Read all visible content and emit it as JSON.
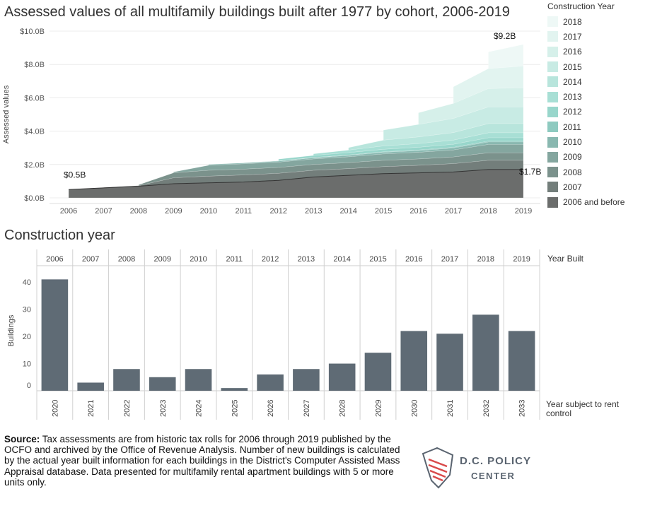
{
  "titles": {
    "top_chart": "Assessed values of all multifamily buildings built after 1977 by cohort, 2006-2019",
    "bottom_chart": "Construction year"
  },
  "legend": {
    "title": "Construction Year",
    "items": [
      {
        "label": "2018",
        "color": "#eef8f6"
      },
      {
        "label": "2017",
        "color": "#e2f4f0"
      },
      {
        "label": "2016",
        "color": "#d6f0ea"
      },
      {
        "label": "2015",
        "color": "#c8ebe4"
      },
      {
        "label": "2014",
        "color": "#b8e5dc"
      },
      {
        "label": "2013",
        "color": "#a8dfd5"
      },
      {
        "label": "2012",
        "color": "#98d6cb"
      },
      {
        "label": "2011",
        "color": "#8ecac0"
      },
      {
        "label": "2010",
        "color": "#89b8b0"
      },
      {
        "label": "2009",
        "color": "#84a69f"
      },
      {
        "label": "2008",
        "color": "#7b928c"
      },
      {
        "label": "2007",
        "color": "#737e7b"
      },
      {
        "label": "2006 and before",
        "color": "#6b6d6c"
      }
    ]
  },
  "annotations": {
    "start_value": "$0.5B",
    "end_total": "$9.2B",
    "end_base": "$1.7B"
  },
  "right_labels": {
    "year_built": "Year Built",
    "year_rent_control": "Year subject to rent control"
  },
  "source": {
    "bold": "Source:",
    "text": " Tax assessments are from historic tax rolls for 2006 through 2019 published by the OCFO and archived by the Office of Revenue Analysis. Number of new buildings is calculated by the actual year built information for each buildings in the District's Computer Assisted Mass Appraisal database. Data presented for multifamily rental apartment buildings with 5 or more units only."
  },
  "logo": {
    "line1": "D.C. POLICY",
    "line2": "CENTER"
  },
  "chart_data": [
    {
      "type": "area",
      "title": "Assessed values of all multifamily buildings built after 1977 by cohort, 2006-2019",
      "xlabel": "",
      "ylabel": "Assessed values",
      "x": [
        2006,
        2007,
        2008,
        2009,
        2010,
        2011,
        2012,
        2013,
        2014,
        2015,
        2016,
        2017,
        2018,
        2019
      ],
      "y_ticks": [
        "$0.0B",
        "$2.0B",
        "$4.0B",
        "$6.0B",
        "$8.0B",
        "$10.0B"
      ],
      "ylim": [
        0,
        10
      ],
      "stacked": true,
      "series": [
        {
          "name": "2006 and before",
          "start": 2006,
          "values": [
            0.5,
            0.6,
            0.7,
            0.85,
            0.9,
            0.95,
            1.05,
            1.25,
            1.35,
            1.45,
            1.5,
            1.55,
            1.7,
            1.7
          ]
        },
        {
          "name": "2007",
          "start": 2007,
          "values": [
            null,
            0.02,
            0.03,
            0.35,
            0.4,
            0.42,
            0.42,
            0.4,
            0.4,
            0.42,
            0.45,
            0.5,
            0.55,
            0.55
          ]
        },
        {
          "name": "2008",
          "start": 2008,
          "values": [
            null,
            null,
            0.05,
            0.3,
            0.35,
            0.35,
            0.35,
            0.35,
            0.36,
            0.38,
            0.38,
            0.4,
            0.45,
            0.45
          ]
        },
        {
          "name": "2009",
          "start": 2009,
          "values": [
            null,
            null,
            null,
            0.05,
            0.3,
            0.32,
            0.32,
            0.33,
            0.35,
            0.38,
            0.4,
            0.42,
            0.5,
            0.5
          ]
        },
        {
          "name": "2010",
          "start": 2010,
          "values": [
            null,
            null,
            null,
            null,
            0.05,
            0.05,
            0.06,
            0.07,
            0.08,
            0.1,
            0.1,
            0.12,
            0.15,
            0.15
          ]
        },
        {
          "name": "2011",
          "start": 2011,
          "values": [
            null,
            null,
            null,
            null,
            null,
            0.01,
            0.02,
            0.02,
            0.03,
            0.03,
            0.04,
            0.04,
            0.05,
            0.05
          ]
        },
        {
          "name": "2012",
          "start": 2012,
          "values": [
            null,
            null,
            null,
            null,
            null,
            null,
            0.1,
            0.12,
            0.14,
            0.15,
            0.16,
            0.18,
            0.2,
            0.2
          ]
        },
        {
          "name": "2013",
          "start": 2013,
          "values": [
            null,
            null,
            null,
            null,
            null,
            null,
            null,
            0.1,
            0.15,
            0.2,
            0.22,
            0.25,
            0.3,
            0.3
          ]
        },
        {
          "name": "2014",
          "start": 2014,
          "values": [
            null,
            null,
            null,
            null,
            null,
            null,
            null,
            null,
            0.15,
            0.35,
            0.4,
            0.45,
            0.55,
            0.55
          ]
        },
        {
          "name": "2015",
          "start": 2015,
          "values": [
            null,
            null,
            null,
            null,
            null,
            null,
            null,
            null,
            null,
            0.6,
            0.75,
            0.85,
            1.0,
            1.0
          ]
        },
        {
          "name": "2016",
          "start": 2016,
          "values": [
            null,
            null,
            null,
            null,
            null,
            null,
            null,
            null,
            null,
            null,
            0.7,
            0.9,
            1.1,
            1.15
          ]
        },
        {
          "name": "2017",
          "start": 2017,
          "values": [
            null,
            null,
            null,
            null,
            null,
            null,
            null,
            null,
            null,
            null,
            null,
            1.0,
            1.2,
            1.3
          ]
        },
        {
          "name": "2018",
          "start": 2018,
          "values": [
            null,
            null,
            null,
            null,
            null,
            null,
            null,
            null,
            null,
            null,
            null,
            null,
            1.0,
            1.3
          ]
        }
      ]
    },
    {
      "type": "bar",
      "title": "Construction year",
      "ylabel": "Buildings",
      "categories": [
        "2006",
        "2007",
        "2008",
        "2009",
        "2010",
        "2011",
        "2012",
        "2013",
        "2014",
        "2015",
        "2016",
        "2017",
        "2018",
        "2019"
      ],
      "secondary_categories": [
        "2020",
        "2021",
        "2022",
        "2023",
        "2024",
        "2025",
        "2026",
        "2027",
        "2028",
        "2029",
        "2030",
        "2031",
        "2032",
        "2033"
      ],
      "values": [
        41,
        3,
        8,
        5,
        8,
        1,
        6,
        8,
        10,
        14,
        22,
        21,
        28,
        22
      ],
      "y_ticks": [
        "0",
        "10",
        "20",
        "30",
        "40"
      ],
      "ylim": [
        0,
        45
      ],
      "bar_color": "#5f6b75"
    }
  ]
}
